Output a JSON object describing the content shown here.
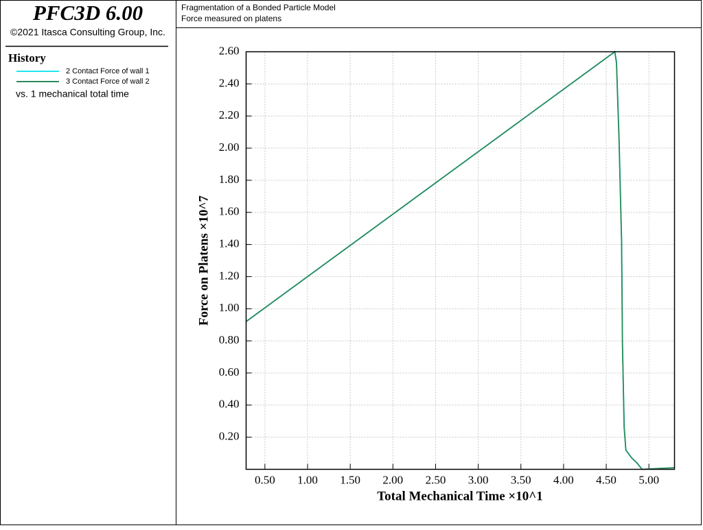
{
  "sidebar": {
    "product": "PFC3D 6.00",
    "copyright": "©2021 Itasca Consulting Group, Inc."
  },
  "header": {
    "title": "Fragmentation of a Bonded Particle Model",
    "subtitle": "Force measured on platens"
  },
  "chart_data": {
    "type": "line",
    "legend_title": "History",
    "legend_note": "vs. 1 mechanical total time",
    "x_label": "Total Mechanical Time ×10^1",
    "y_label": "Force on Platens ×10^7",
    "x": [
      0.28,
      4.6,
      4.62,
      4.65,
      4.68,
      4.69,
      4.71,
      4.73,
      4.8,
      4.86,
      4.92,
      5.3
    ],
    "series": [
      {
        "name": "2 Contact Force of wall 1",
        "color": "#1ee6f0",
        "values": [
          0.92,
          2.6,
          2.54,
          2.07,
          1.43,
          0.79,
          0.27,
          0.12,
          0.07,
          0.04,
          0.0,
          0.01
        ]
      },
      {
        "name": "3 Contact Force of wall 2",
        "color": "#2a8a5a",
        "values": [
          0.92,
          2.6,
          2.53,
          2.05,
          1.41,
          0.78,
          0.26,
          0.12,
          0.07,
          0.04,
          0.0,
          0.01
        ]
      }
    ],
    "xlim": [
      0.28,
      5.3
    ],
    "ylim": [
      0,
      2.6
    ],
    "xticks": [
      {
        "value": 0.5,
        "label": "0.50"
      },
      {
        "value": 1,
        "label": "1.00"
      },
      {
        "value": 1.5,
        "label": "1.50"
      },
      {
        "value": 2,
        "label": "2.00"
      },
      {
        "value": 2.5,
        "label": "2.50"
      },
      {
        "value": 3,
        "label": "3.00"
      },
      {
        "value": 3.5,
        "label": "3.50"
      },
      {
        "value": 4,
        "label": "4.00"
      },
      {
        "value": 4.5,
        "label": "4.50"
      },
      {
        "value": 5,
        "label": "5.00"
      }
    ],
    "yticks": [
      {
        "value": 0.2,
        "label": "0.20"
      },
      {
        "value": 0.4,
        "label": "0.40"
      },
      {
        "value": 0.6,
        "label": "0.60"
      },
      {
        "value": 0.8,
        "label": "0.80"
      },
      {
        "value": 1,
        "label": "1.00"
      },
      {
        "value": 1.2,
        "label": "1.20"
      },
      {
        "value": 1.4,
        "label": "1.40"
      },
      {
        "value": 1.6,
        "label": "1.60"
      },
      {
        "value": 1.8,
        "label": "1.80"
      },
      {
        "value": 2,
        "label": "2.00"
      },
      {
        "value": 2.2,
        "label": "2.20"
      },
      {
        "value": 2.4,
        "label": "2.40"
      },
      {
        "value": 2.6,
        "label": "2.60"
      }
    ],
    "grid": true
  }
}
